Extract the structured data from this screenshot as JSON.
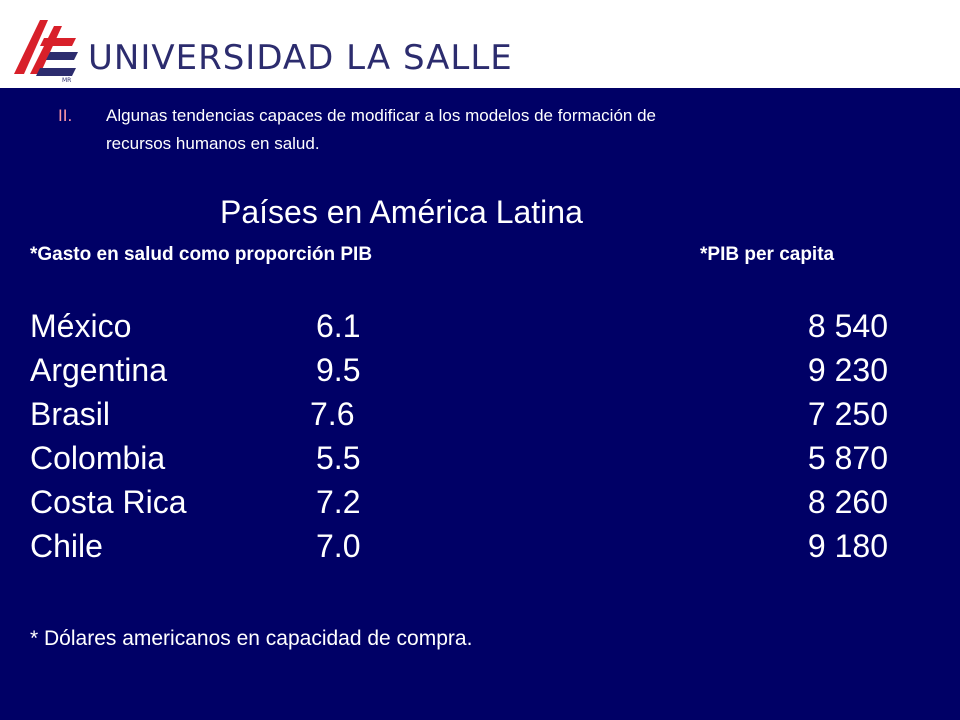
{
  "header": {
    "institution_name": "UNIVERSIDAD LA SALLE",
    "logo_mark_text": "MR"
  },
  "intro": {
    "number": "II.",
    "text_line1": "Algunas tendencias capaces de modificar a los modelos de formación de",
    "text_line2": "recursos humanos en salud."
  },
  "heading": "Países en América Latina",
  "columns": {
    "gasto_header": "*Gasto en salud como proporción PIB",
    "pib_header": "*PIB per capita"
  },
  "rows": [
    {
      "country": "México",
      "gasto": "6.1",
      "pib": "8 540"
    },
    {
      "country": "Argentina",
      "gasto": "9.5",
      "pib": "9 230"
    },
    {
      "country": "Brasil",
      "gasto": "7.6",
      "pib": "7 250"
    },
    {
      "country": "Colombia",
      "gasto": "5.5",
      "pib": "5 870"
    },
    {
      "country": "Costa Rica",
      "gasto": "7.2",
      "pib": "8 260"
    },
    {
      "country": "Chile",
      "gasto": "7.0",
      "pib": "9 180"
    }
  ],
  "footnote": "* Dólares americanos en capacidad de compra.",
  "colors": {
    "slide_background": "#000066",
    "text": "#ffffff",
    "number_accent": "#ff9aa6",
    "logo_red": "#d8202a",
    "logo_blue": "#2c2c6e"
  }
}
